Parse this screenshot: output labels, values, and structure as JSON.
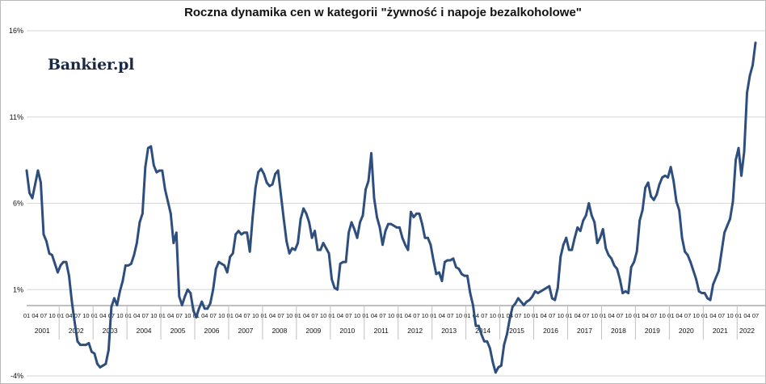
{
  "chart_data": {
    "type": "line",
    "title": "Roczna dynamika cen w kategorii \"żywność i napoje bezalkoholowe\"",
    "xlabel": "",
    "ylabel": "",
    "ylim": [
      -4,
      16
    ],
    "yticks": [
      "-4%",
      "1%",
      "6%",
      "11%",
      "16%"
    ],
    "ytick_values": [
      -4,
      1,
      6,
      11,
      16
    ],
    "grid": "horizontal",
    "legend": "none",
    "line_color": "#2e4e7e",
    "years": [
      "2001",
      "2002",
      "2003",
      "2004",
      "2005",
      "2006",
      "2007",
      "2008",
      "2009",
      "2010",
      "2011",
      "2012",
      "2013",
      "2014",
      "2015",
      "2016",
      "2017",
      "2018",
      "2019",
      "2020",
      "2021",
      "2022"
    ],
    "month_ticks": [
      "01",
      "04",
      "07",
      "10"
    ],
    "last_year_ticks": [
      "01",
      "04",
      "07"
    ],
    "series": [
      {
        "name": "",
        "values": [
          7.9,
          6.6,
          6.3,
          7.1,
          7.9,
          7.2,
          4.2,
          3.8,
          3.1,
          3.0,
          2.5,
          2.0,
          2.4,
          2.6,
          2.6,
          1.8,
          0.3,
          -0.9,
          -2.0,
          -2.2,
          -2.2,
          -2.2,
          -2.1,
          -2.6,
          -2.7,
          -3.3,
          -3.5,
          -3.4,
          -3.3,
          -2.5,
          0.0,
          0.5,
          0.1,
          0.9,
          1.5,
          2.4,
          2.4,
          2.5,
          3.0,
          3.7,
          4.9,
          5.4,
          8.1,
          9.2,
          9.3,
          8.2,
          7.8,
          7.9,
          7.9,
          6.8,
          6.1,
          5.4,
          3.7,
          4.3,
          0.6,
          0.1,
          0.6,
          1.0,
          0.8,
          -0.2,
          -0.6,
          -0.1,
          0.3,
          -0.1,
          -0.1,
          0.2,
          1.0,
          2.2,
          2.6,
          2.5,
          2.4,
          2.0,
          2.9,
          3.1,
          4.2,
          4.4,
          4.2,
          4.3,
          4.3,
          3.2,
          5.2,
          6.9,
          7.8,
          8.0,
          7.7,
          7.2,
          7.0,
          7.1,
          7.7,
          7.9,
          6.5,
          5.1,
          3.8,
          3.1,
          3.4,
          3.3,
          3.7,
          5.1,
          5.7,
          5.4,
          4.9,
          4.0,
          4.4,
          3.3,
          3.3,
          3.7,
          3.4,
          3.1,
          1.6,
          1.1,
          1.0,
          2.5,
          2.6,
          2.6,
          4.3,
          4.9,
          4.5,
          4.0,
          4.9,
          5.3,
          6.8,
          7.3,
          8.9,
          6.3,
          5.2,
          4.6,
          3.6,
          4.4,
          4.8,
          4.8,
          4.7,
          4.6,
          4.6,
          4.0,
          3.6,
          3.3,
          5.5,
          5.2,
          5.4,
          5.4,
          4.8,
          4.0,
          4.0,
          3.6,
          2.7,
          1.9,
          2.0,
          1.5,
          2.6,
          2.7,
          2.7,
          2.8,
          2.3,
          2.2,
          1.9,
          1.8,
          1.8,
          0.8,
          0.1,
          -1.1,
          -1.1,
          -1.6,
          -2.0,
          -2.0,
          -2.4,
          -3.2,
          -3.8,
          -3.5,
          -3.4,
          -2.2,
          -1.6,
          -0.7,
          0.0,
          0.2,
          0.5,
          0.3,
          0.1,
          0.3,
          0.4,
          0.6,
          0.9,
          0.8,
          0.9,
          1.0,
          1.1,
          1.2,
          0.5,
          0.4,
          1.1,
          2.9,
          3.6,
          4.0,
          3.3,
          3.3,
          4.0,
          4.6,
          4.4,
          5.0,
          5.3,
          6.0,
          5.3,
          4.9,
          3.7,
          4.0,
          4.5,
          3.4,
          3.0,
          2.8,
          2.4,
          2.2,
          1.6,
          0.8,
          0.9,
          0.8,
          2.3,
          2.6,
          3.2,
          5.0,
          5.6,
          6.9,
          7.2,
          6.4,
          6.2,
          6.5,
          7.1,
          7.5,
          7.6,
          7.5,
          8.1,
          7.3,
          6.1,
          5.6,
          4.0,
          3.2,
          3.0,
          2.6,
          2.1,
          1.6,
          0.9,
          0.8,
          0.8,
          0.5,
          0.4,
          1.3,
          1.7,
          2.1,
          3.2,
          4.3,
          4.7,
          5.1,
          6.1,
          8.5,
          9.2,
          7.6,
          9.0,
          12.4,
          13.4,
          14.0,
          15.3
        ]
      }
    ]
  },
  "brand": {
    "logo_text": "Bankier.pl",
    "logo_color": "#1b2a44"
  }
}
